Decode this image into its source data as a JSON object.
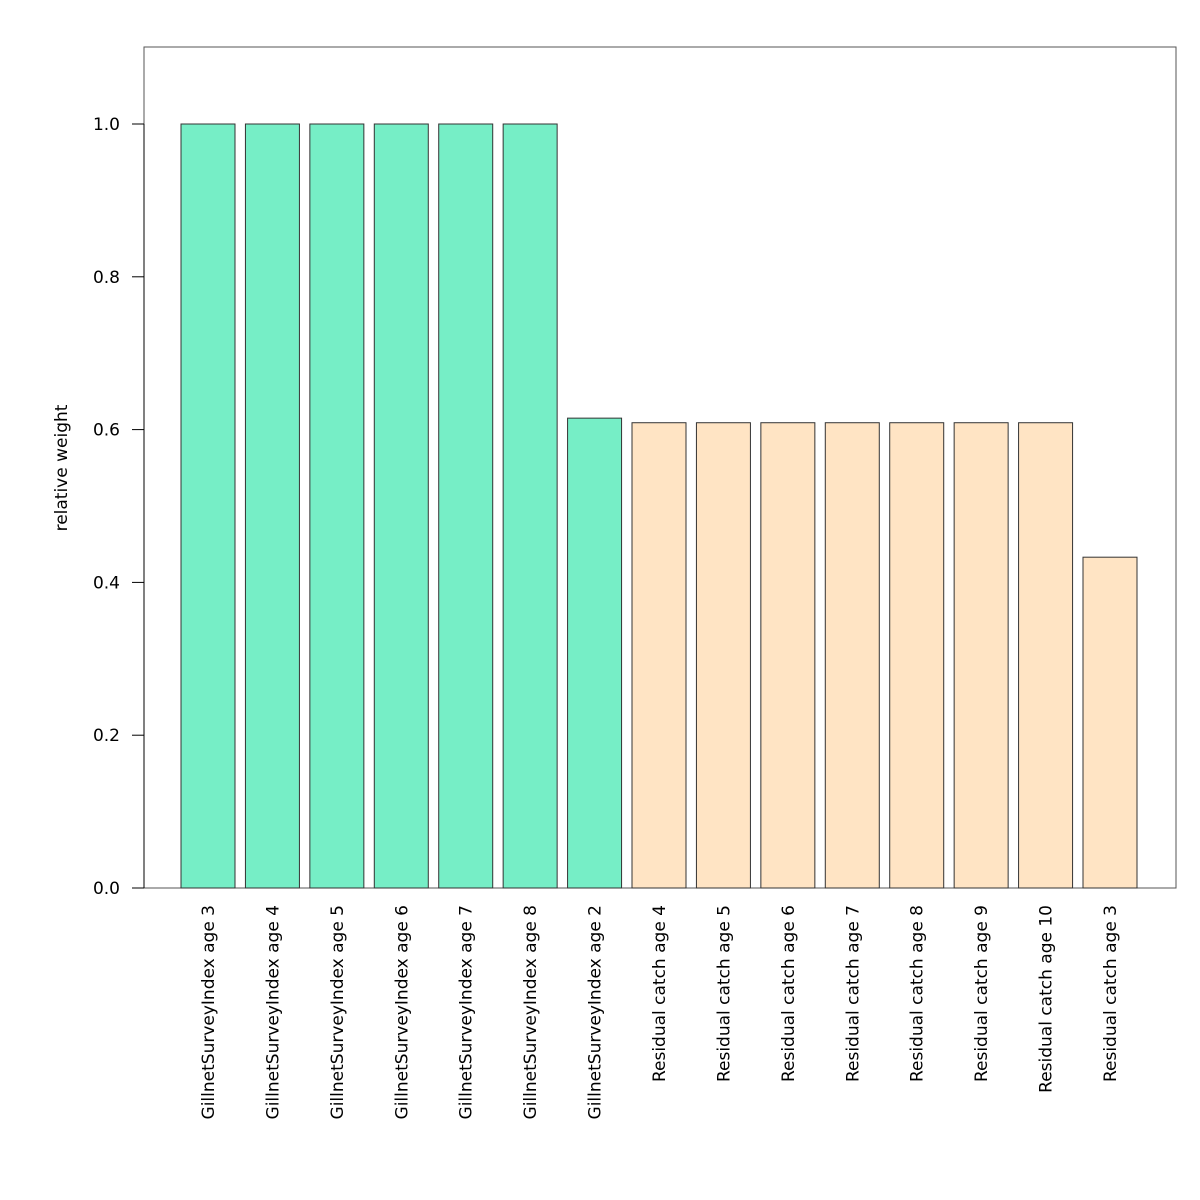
{
  "chart_data": {
    "type": "bar",
    "title": "",
    "xlabel": "",
    "ylabel": "relative weight",
    "ylim": [
      0,
      1.1
    ],
    "yticks": [
      "0.0",
      "0.2",
      "0.4",
      "0.6",
      "0.8",
      "1.0"
    ],
    "grid": false,
    "categories": [
      "GillnetSurveyIndex age 3",
      "GillnetSurveyIndex age 4",
      "GillnetSurveyIndex age 5",
      "GillnetSurveyIndex age 6",
      "GillnetSurveyIndex age 7",
      "GillnetSurveyIndex age 8",
      "GillnetSurveyIndex age 2",
      "Residual catch age 4",
      "Residual catch age 5",
      "Residual catch age 6",
      "Residual catch age 7",
      "Residual catch age 8",
      "Residual catch age 9",
      "Residual catch age 10",
      "Residual catch age 3"
    ],
    "values": [
      1.0,
      1.0,
      1.0,
      1.0,
      1.0,
      1.0,
      0.615,
      0.609,
      0.609,
      0.609,
      0.609,
      0.609,
      0.609,
      0.609,
      0.433
    ],
    "groups": [
      "survey",
      "survey",
      "survey",
      "survey",
      "survey",
      "survey",
      "survey",
      "catch",
      "catch",
      "catch",
      "catch",
      "catch",
      "catch",
      "catch",
      "catch"
    ],
    "colors": {
      "survey": "#76eec6",
      "catch": "#ffe4c4"
    }
  }
}
